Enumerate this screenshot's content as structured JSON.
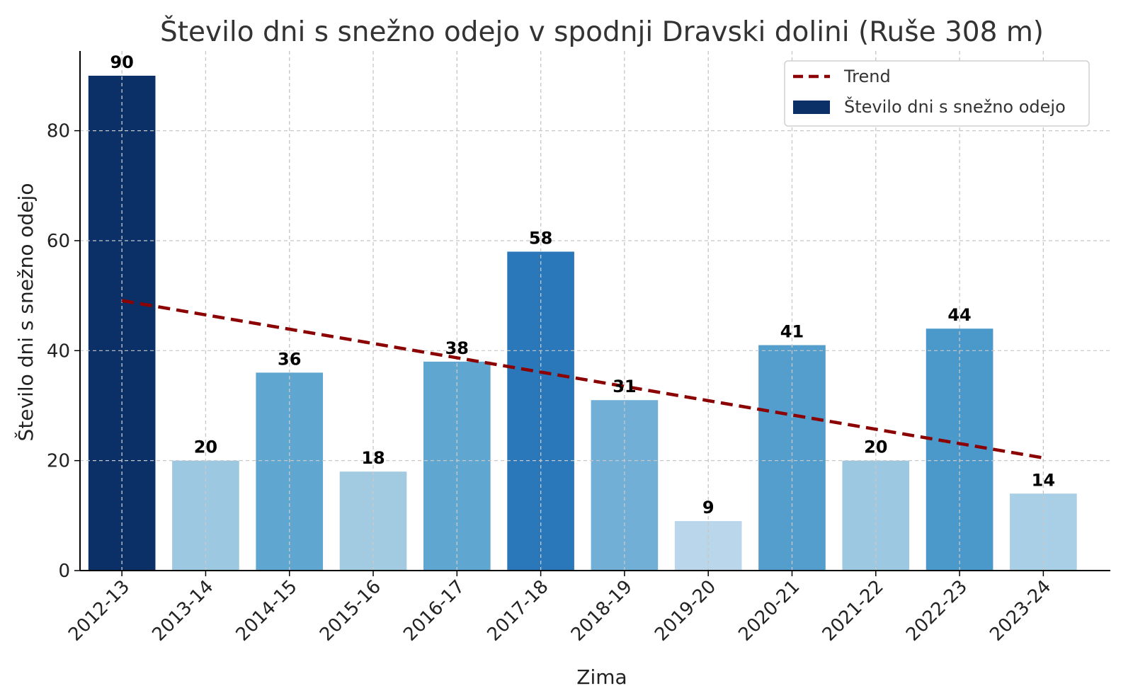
{
  "chart_data": {
    "type": "bar",
    "title": "Število dni s snežno odejo v spodnji Dravski dolini (Ruše 308 m)",
    "xlabel": "Zima",
    "ylabel": "Število dni s snežno odejo",
    "categories": [
      "2012-13",
      "2013-14",
      "2014-15",
      "2015-16",
      "2016-17",
      "2017-18",
      "2018-19",
      "2019-20",
      "2020-21",
      "2021-22",
      "2022-23",
      "2023-24"
    ],
    "series": [
      {
        "name": "Število dni s snežno odejo",
        "values": [
          90,
          20,
          36,
          18,
          38,
          58,
          31,
          9,
          41,
          20,
          44,
          14
        ],
        "colors": [
          "#0b3068",
          "#9dc8e2",
          "#5fa6d1",
          "#a2cbe2",
          "#5fa6d1",
          "#2a78ba",
          "#71afd7",
          "#bad6eb",
          "#539ecd",
          "#9dc8e2",
          "#4b98ca",
          "#a8cfe6"
        ]
      },
      {
        "name": "Trend",
        "type": "line",
        "style": "dashed",
        "color": "#8b0000",
        "values": [
          49.1,
          46.5,
          43.9,
          41.3,
          38.7,
          36.1,
          33.5,
          30.9,
          28.3,
          25.7,
          23.1,
          20.5
        ]
      }
    ],
    "ylim": [
      0,
      94.5
    ],
    "yticks": [
      0,
      20,
      40,
      60,
      80
    ],
    "grid": true,
    "legend_position": "top-right"
  }
}
